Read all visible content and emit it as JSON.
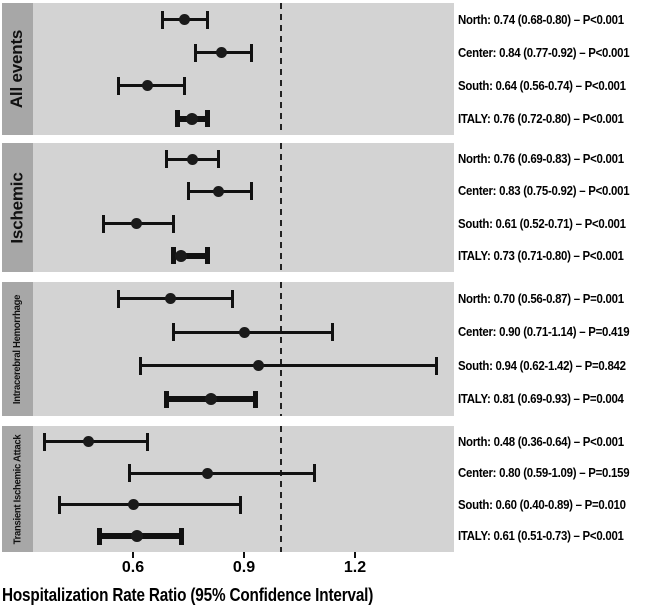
{
  "colors": {
    "panel_bg": "#d3d3d3",
    "strip_bg": "#a7a7a7",
    "ink": "#111111"
  },
  "chart_data": {
    "type": "forest",
    "xlabel": "Hospitalization Rate Ratio (95% Confidence Interval)",
    "x_tick_labels": [
      "0.6",
      "0.9",
      "1.2"
    ],
    "reference_line": 1.0,
    "xlim": [
      0.34,
      1.47
    ],
    "grid": false,
    "legend": false,
    "panels": [
      {
        "label": "All events",
        "rows": [
          {
            "name": "North",
            "est": "0.74",
            "lo": "0.68",
            "hi": "0.80",
            "p": "P<0.001",
            "emphasis": false
          },
          {
            "name": "Center",
            "est": "0.84",
            "lo": "0.77",
            "hi": "0.92",
            "p": "P<0.001",
            "emphasis": false
          },
          {
            "name": "South",
            "est": "0.64",
            "lo": "0.56",
            "hi": "0.74",
            "p": "P<0.001",
            "emphasis": false
          },
          {
            "name": "ITALY",
            "est": "0.76",
            "lo": "0.72",
            "hi": "0.80",
            "p": "P<0.001",
            "emphasis": true
          }
        ]
      },
      {
        "label": "Ischemic",
        "rows": [
          {
            "name": "North",
            "est": "0.76",
            "lo": "0.69",
            "hi": "0.83",
            "p": "P<0.001",
            "emphasis": false
          },
          {
            "name": "Center",
            "est": "0.83",
            "lo": "0.75",
            "hi": "0.92",
            "p": "P<0.001",
            "emphasis": false
          },
          {
            "name": "South",
            "est": "0.61",
            "lo": "0.52",
            "hi": "0.71",
            "p": "P<0.001",
            "emphasis": false
          },
          {
            "name": "ITALY",
            "est": "0.73",
            "lo": "0.71",
            "hi": "0.80",
            "p": "P<0.001",
            "emphasis": true
          }
        ]
      },
      {
        "label": "Intracerebral Hemorrhage",
        "rows": [
          {
            "name": "North",
            "est": "0.70",
            "lo": "0.56",
            "hi": "0.87",
            "p": "P=0.001",
            "emphasis": false
          },
          {
            "name": "Center",
            "est": "0.90",
            "lo": "0.71",
            "hi": "1.14",
            "p": "P=0.419",
            "emphasis": false
          },
          {
            "name": "South",
            "est": "0.94",
            "lo": "0.62",
            "hi": "1.42",
            "p": "P=0.842",
            "emphasis": false
          },
          {
            "name": "ITALY",
            "est": "0.81",
            "lo": "0.69",
            "hi": "0.93",
            "p": "P=0.004",
            "emphasis": true
          }
        ]
      },
      {
        "label": "Transient Ischemic Attack",
        "rows": [
          {
            "name": "North",
            "est": "0.48",
            "lo": "0.36",
            "hi": "0.64",
            "p": "P<0.001",
            "emphasis": false
          },
          {
            "name": "Center",
            "est": "0.80",
            "lo": "0.59",
            "hi": "1.09",
            "p": "P=0.159",
            "emphasis": false
          },
          {
            "name": "South",
            "est": "0.60",
            "lo": "0.40",
            "hi": "0.89",
            "p": "P=0.010",
            "emphasis": false
          },
          {
            "name": "ITALY",
            "est": "0.61",
            "lo": "0.51",
            "hi": "0.73",
            "p": "P<0.001",
            "emphasis": true
          }
        ]
      }
    ]
  }
}
